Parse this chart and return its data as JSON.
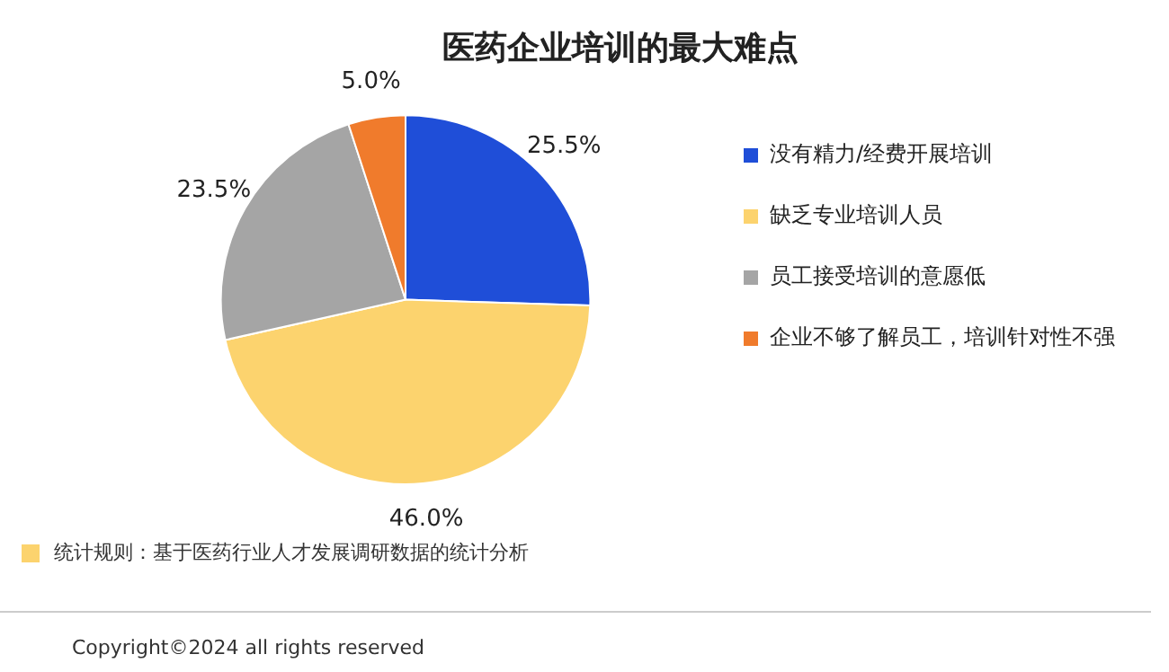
{
  "chart_data": {
    "type": "pie",
    "title": "医药企业培训的最大难点",
    "categories": [
      "没有精力/经费开展培训",
      "缺乏专业培训人员",
      "员工接受培训的意愿低",
      "企业不够了解员工，培训针对性不强"
    ],
    "values": [
      25.5,
      46.0,
      23.5,
      5.0
    ],
    "colors": [
      "#1f4ed8",
      "#fcd36e",
      "#a5a5a5",
      "#f07b2c"
    ],
    "value_labels": [
      "25.5%",
      "46.0%",
      "23.5%",
      "5.0%"
    ],
    "legend": "right",
    "annotations": [
      "统计规则：基于医药行业人才发展调研数据的统计分析",
      "Copyright©2024 all rights reserved"
    ]
  }
}
